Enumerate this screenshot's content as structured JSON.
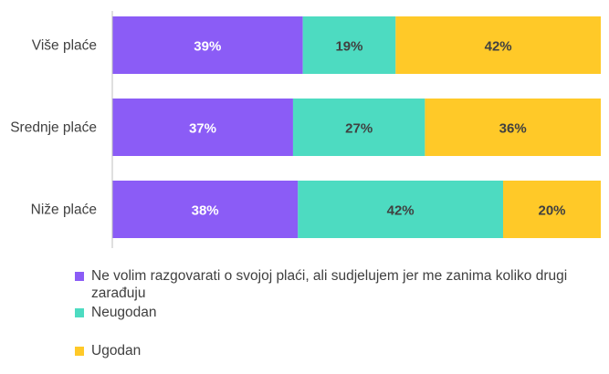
{
  "chart_data": {
    "type": "bar",
    "orientation": "horizontal",
    "stacked": true,
    "categories": [
      "Više plaće",
      "Srednje plaće",
      "Niže plaće"
    ],
    "series": [
      {
        "name": "Ne volim razgovarati o svojoj plaći, ali sudjelujem jer me zanima koliko drugi zarađuju",
        "values": [
          39,
          37,
          38
        ],
        "labels": [
          "39%",
          "37%",
          "38%"
        ],
        "color": "#8B5CF6"
      },
      {
        "name": "Neugodan",
        "values": [
          19,
          27,
          42
        ],
        "labels": [
          "19%",
          "27%",
          "42%"
        ],
        "color": "#4DDBC1"
      },
      {
        "name": "Ugodan",
        "values": [
          42,
          36,
          20
        ],
        "labels": [
          "42%",
          "36%",
          "20%"
        ],
        "color": "#FFC928"
      }
    ],
    "xlim": [
      0,
      100
    ],
    "grid": false,
    "legend_position": "bottom"
  }
}
